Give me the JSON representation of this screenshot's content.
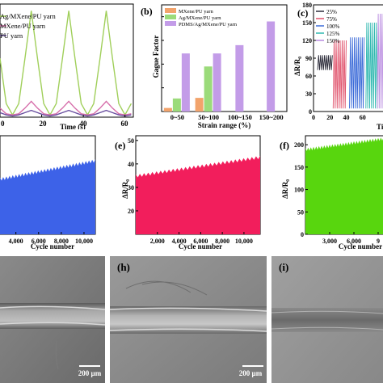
{
  "panels": {
    "a": {
      "legend": [
        "Ag/MXene/PU yarn",
        "MXene/PU yarn",
        "PU yarn"
      ],
      "xlabel": "Time (s)",
      "xticks": [
        "0",
        "20",
        "40",
        "60"
      ]
    },
    "b": {
      "letter": "(b)"
    },
    "c": {
      "letter": "(c)",
      "ylabel": "ΔR/R₀",
      "yticks": [
        "0",
        "30",
        "60",
        "90",
        "120",
        "150",
        "180"
      ],
      "xticks": [
        "0",
        "20",
        "40",
        "60"
      ],
      "xlabel": "Time",
      "legend": [
        "25%",
        "75%",
        "100%",
        "125%",
        "150%"
      ]
    },
    "d": {
      "xlabel": "Cycle number",
      "xticks": [
        "4,000",
        "6,000",
        "8,000",
        "10,000"
      ]
    },
    "e": {
      "letter": "(e)",
      "ylabel": "ΔR/R₀",
      "yticks": [
        "20",
        "30",
        "40",
        "50"
      ],
      "xticks": [
        "2,000",
        "4,000",
        "6,000",
        "8,000",
        "10,000"
      ],
      "xlabel": "Cycle number"
    },
    "f": {
      "letter": "(f)",
      "ylabel": "ΔR/R₀",
      "yticks": [
        "0",
        "50",
        "100",
        "150",
        "200"
      ],
      "xticks": [
        "3,000",
        "6,000",
        "9"
      ],
      "xlabel": "Cycle number"
    },
    "g": {
      "scale": "200 µm"
    },
    "h": {
      "letter": "(h)",
      "scale": "200 µm"
    },
    "i": {
      "letter": "(i)"
    }
  },
  "chart_data": [
    {
      "panel": "a",
      "type": "line",
      "title": "",
      "xlabel": "Time (s)",
      "ylabel": "",
      "xlim": [
        0,
        64
      ],
      "series": [
        {
          "name": "Ag/MXene/PU yarn",
          "color": "#a0cf5a",
          "x": [
            0,
            3,
            6,
            9,
            12,
            15,
            18,
            21,
            24,
            27,
            30,
            33,
            36,
            39,
            42,
            45,
            48,
            51,
            54,
            57,
            60,
            63
          ],
          "y": [
            0.52,
            0.12,
            0.02,
            0.12,
            0.52,
            0.94,
            0.52,
            0.12,
            0.02,
            0.12,
            0.52,
            0.94,
            0.52,
            0.12,
            0.02,
            0.12,
            0.52,
            0.94,
            0.52,
            0.12,
            0.02,
            0.12
          ]
        },
        {
          "name": "MXene/PU yarn",
          "color": "#d66eaa",
          "x": [
            0,
            3,
            6,
            9,
            12,
            15,
            18,
            21,
            24,
            27,
            30,
            33,
            36,
            39,
            42,
            45,
            48,
            51,
            54,
            57,
            60,
            63
          ],
          "y": [
            0.08,
            0.03,
            0.02,
            0.03,
            0.08,
            0.14,
            0.08,
            0.03,
            0.02,
            0.03,
            0.08,
            0.14,
            0.08,
            0.03,
            0.02,
            0.03,
            0.08,
            0.14,
            0.08,
            0.03,
            0.02,
            0.03
          ]
        },
        {
          "name": "PU yarn",
          "color": "#6a4fa0",
          "x": [
            0,
            3,
            6,
            9,
            12,
            15,
            18,
            21,
            24,
            27,
            30,
            33,
            36,
            39,
            42,
            45,
            48,
            51,
            54,
            57,
            60,
            63
          ],
          "y": [
            0.04,
            0.02,
            0.01,
            0.02,
            0.04,
            0.06,
            0.04,
            0.02,
            0.01,
            0.02,
            0.04,
            0.06,
            0.04,
            0.02,
            0.01,
            0.02,
            0.04,
            0.06,
            0.04,
            0.02,
            0.01,
            0.02
          ]
        }
      ]
    },
    {
      "panel": "b",
      "type": "bar",
      "title": "",
      "xlabel": "Strain range (%)",
      "ylabel": "Gague Factor",
      "categories": [
        "0~50",
        "50~100",
        "100~150",
        "150~200"
      ],
      "ylim": [
        0,
        900
      ],
      "yticks": [
        0,
        200,
        400,
        600,
        800
      ],
      "series": [
        {
          "name": "MXene/PU yarn",
          "color": "#f2a36b",
          "values": [
            30,
            115,
            null,
            null
          ]
        },
        {
          "name": "Ag/MXene/PU yarn",
          "color": "#9bdb7a",
          "values": [
            110,
            380,
            null,
            null
          ]
        },
        {
          "name": "PDMS/Ag/MXene/PU yarn",
          "color": "#c39ce8",
          "values": [
            490,
            490,
            560,
            760
          ]
        }
      ]
    },
    {
      "panel": "c",
      "type": "line",
      "title": "",
      "xlabel": "Time",
      "ylabel": "ΔR/R₀",
      "ylim": [
        0,
        180
      ],
      "xlim": [
        0,
        85
      ],
      "series": [
        {
          "name": "25%",
          "color": "#2c2c3a",
          "x_start": 5,
          "x_end": 23,
          "peak": 95,
          "base": 70
        },
        {
          "name": "75%",
          "color": "#e0506a",
          "x_start": 24,
          "x_end": 40,
          "peak": 120,
          "base": 5
        },
        {
          "name": "100%",
          "color": "#3a6ad8",
          "x_start": 44,
          "x_end": 62,
          "peak": 125,
          "base": 5
        },
        {
          "name": "125%",
          "color": "#2fb8b0",
          "x_start": 64,
          "x_end": 78,
          "peak": 150,
          "base": 5
        },
        {
          "name": "150%",
          "color": "#b98be0",
          "x_start": 78,
          "x_end": 85,
          "peak": 165,
          "base": 5
        }
      ]
    },
    {
      "panel": "d",
      "type": "area",
      "title": "",
      "xlabel": "Cycle number",
      "ylabel": "",
      "color": "#3d62e8",
      "xlim": [
        2600,
        11000
      ],
      "x": [
        2600,
        11000
      ],
      "y": [
        45,
        60
      ],
      "ymin": 0,
      "ymax": 80
    },
    {
      "panel": "e",
      "type": "area",
      "title": "",
      "xlabel": "Cycle number",
      "ylabel": "ΔR/R₀",
      "color": "#f21e5c",
      "xlim": [
        0,
        11500
      ],
      "ylim": [
        10,
        52
      ],
      "x": [
        0,
        11500
      ],
      "y": [
        35,
        43
      ]
    },
    {
      "panel": "f",
      "type": "area",
      "title": "",
      "xlabel": "Cycle number",
      "ylabel": "ΔR/R₀",
      "color": "#58d60e",
      "xlim": [
        0,
        10000
      ],
      "ylim": [
        0,
        220
      ],
      "x": [
        0,
        10000
      ],
      "y": [
        190,
        215
      ]
    }
  ]
}
